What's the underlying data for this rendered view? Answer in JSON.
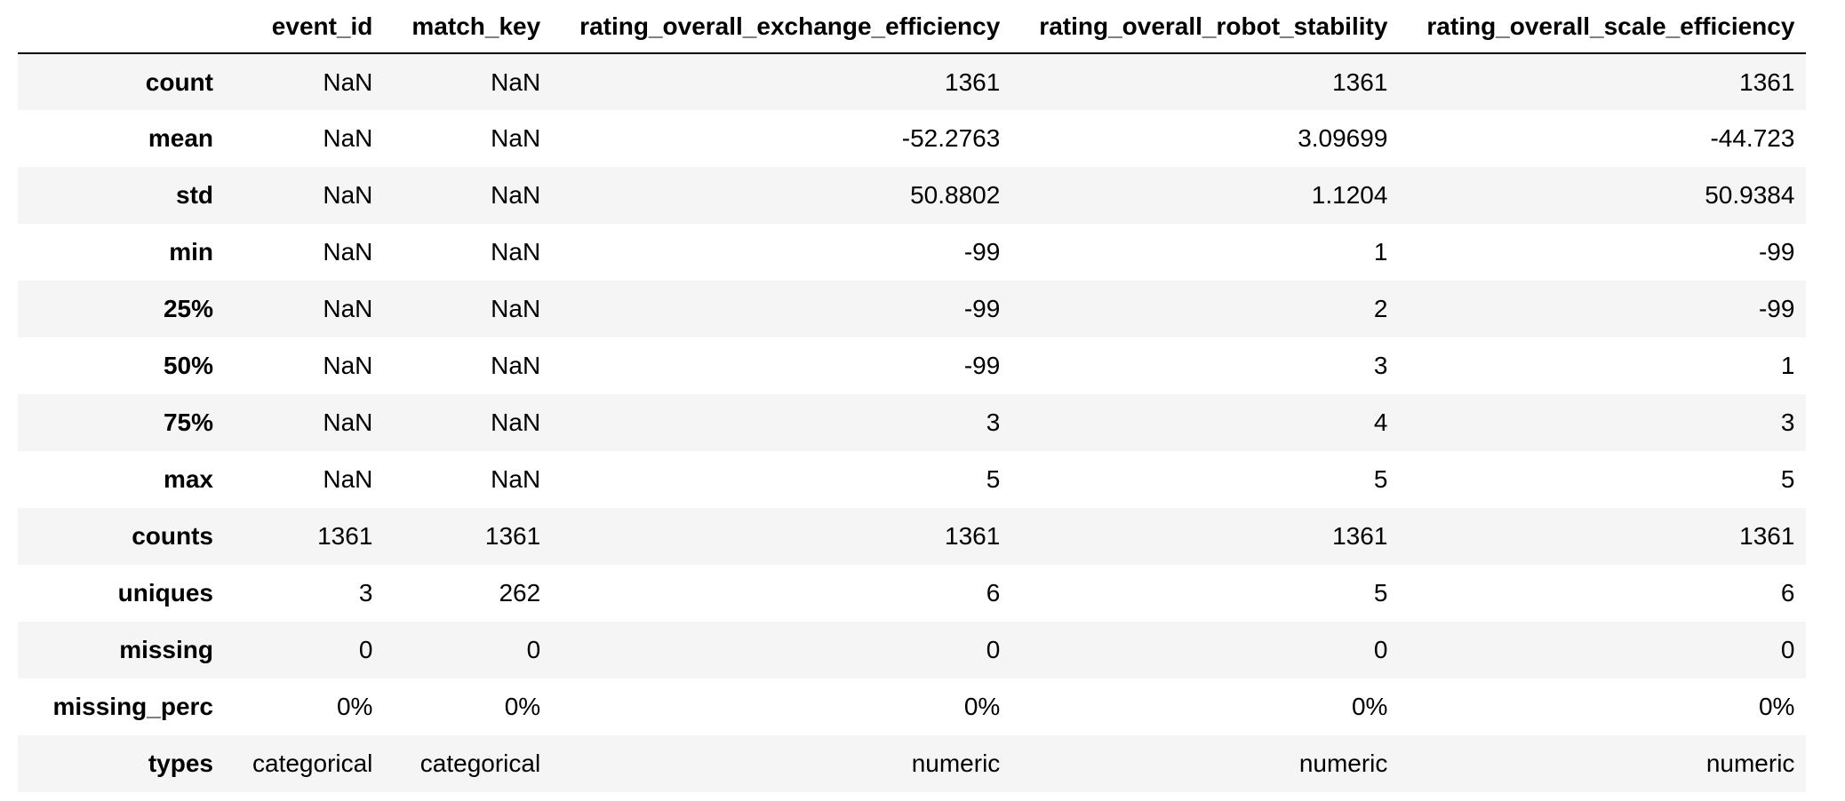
{
  "table": {
    "columns": [
      "event_id",
      "match_key",
      "rating_overall_exchange_efficiency",
      "rating_overall_robot_stability",
      "rating_overall_scale_efficiency"
    ],
    "rows": [
      {
        "label": "count",
        "values": [
          "NaN",
          "NaN",
          "1361",
          "1361",
          "1361"
        ]
      },
      {
        "label": "mean",
        "values": [
          "NaN",
          "NaN",
          "-52.2763",
          "3.09699",
          "-44.723"
        ]
      },
      {
        "label": "std",
        "values": [
          "NaN",
          "NaN",
          "50.8802",
          "1.1204",
          "50.9384"
        ]
      },
      {
        "label": "min",
        "values": [
          "NaN",
          "NaN",
          "-99",
          "1",
          "-99"
        ]
      },
      {
        "label": "25%",
        "values": [
          "NaN",
          "NaN",
          "-99",
          "2",
          "-99"
        ]
      },
      {
        "label": "50%",
        "values": [
          "NaN",
          "NaN",
          "-99",
          "3",
          "1"
        ]
      },
      {
        "label": "75%",
        "values": [
          "NaN",
          "NaN",
          "3",
          "4",
          "3"
        ]
      },
      {
        "label": "max",
        "values": [
          "NaN",
          "NaN",
          "5",
          "5",
          "5"
        ]
      },
      {
        "label": "counts",
        "values": [
          "1361",
          "1361",
          "1361",
          "1361",
          "1361"
        ]
      },
      {
        "label": "uniques",
        "values": [
          "3",
          "262",
          "6",
          "5",
          "6"
        ]
      },
      {
        "label": "missing",
        "values": [
          "0",
          "0",
          "0",
          "0",
          "0"
        ]
      },
      {
        "label": "missing_perc",
        "values": [
          "0%",
          "0%",
          "0%",
          "0%",
          "0%"
        ]
      },
      {
        "label": "types",
        "values": [
          "categorical",
          "categorical",
          "numeric",
          "numeric",
          "numeric"
        ]
      }
    ]
  }
}
